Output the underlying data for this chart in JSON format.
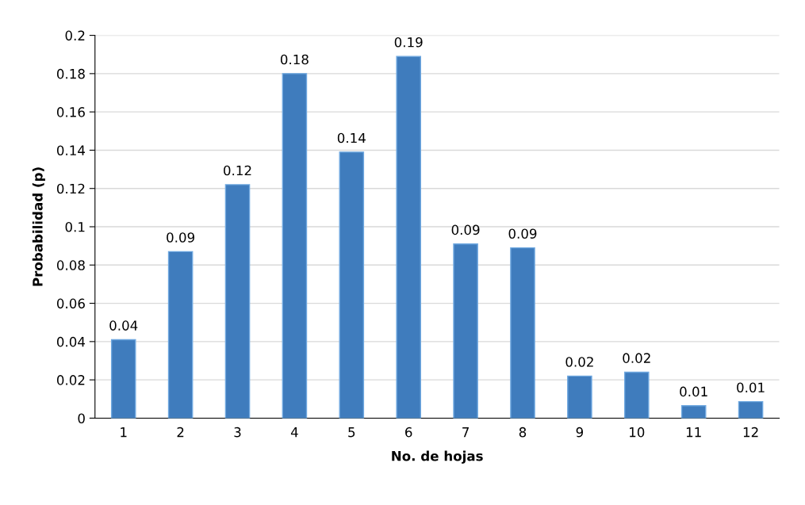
{
  "chart_data": {
    "type": "bar",
    "xlabel": "No. de hojas",
    "ylabel": "Probabilidad (p)",
    "categories": [
      "1",
      "2",
      "3",
      "4",
      "5",
      "6",
      "7",
      "8",
      "9",
      "10",
      "11",
      "12"
    ],
    "values": [
      0.041,
      0.087,
      0.122,
      0.18,
      0.139,
      0.189,
      0.091,
      0.089,
      0.022,
      0.024,
      0.0065,
      0.0086
    ],
    "value_labels": [
      "0.04",
      "0.09",
      "0.12",
      "0.18",
      "0.14",
      "0.19",
      "0.09",
      "0.09",
      "0.02",
      "0.02",
      "0.01",
      "0.01"
    ],
    "color": "#3f7cbd",
    "ylim": [
      0,
      0.2
    ],
    "yticks": [
      0,
      {
        "value": 0.02,
        "label": "0.02"
      },
      {
        "value": 0.04,
        "label": "0.04"
      },
      {
        "value": 0.06,
        "label": "0.06"
      },
      {
        "value": 0.08,
        "label": "0.08"
      },
      {
        "value": 0.1,
        "label": "0.1"
      },
      {
        "value": 0.12,
        "label": "0.12"
      },
      {
        "value": 0.14,
        "label": "0.14"
      },
      {
        "value": 0.16,
        "label": "0.16"
      },
      {
        "value": 0.18,
        "label": "0.18"
      },
      {
        "value": 0.2,
        "label": "0.2"
      }
    ],
    "grid": "y"
  }
}
